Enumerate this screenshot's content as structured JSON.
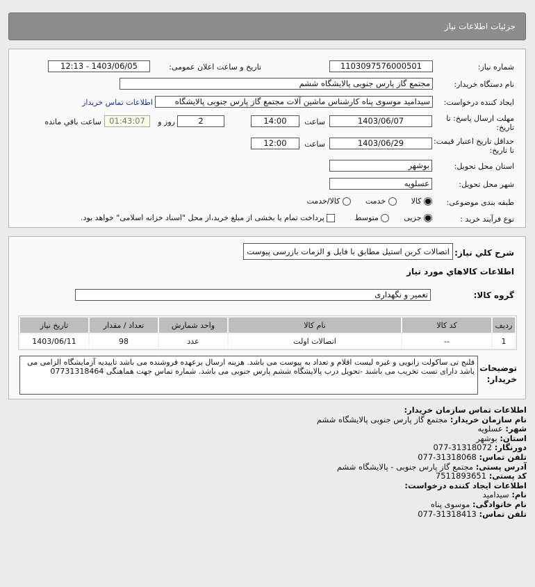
{
  "header": {
    "title": "جزئیات اطلاعات نیاز"
  },
  "form": {
    "need_number_label": "شماره نیاز:",
    "need_number": "1103097576000501",
    "announce_label": "تاریخ و ساعت اعلان عمومی:",
    "announce_value": "1403/06/05 - 12:13",
    "buyer_org_label": "نام دستگاه خریدار:",
    "buyer_org": "مجتمع گاز پارس جنوبی  پالایشگاه ششم",
    "creator_label": "ایجاد کننده درخواست:",
    "creator": "سیدامید موسوی پناه کارشناس ماشین آلات مجتمع گاز پارس جنوبی  پالایشگاه",
    "contact_link": "اطلاعات تماس خریدار",
    "deadline_label": "مهلت ارسال پاسخ: تا تاریخ:",
    "deadline_date": "1403/06/07",
    "time_label": "ساعت",
    "deadline_time": "14:00",
    "days": "2",
    "days_label": "روز و",
    "remaining": "01:43:07",
    "remaining_label": "ساعت باقي مانده",
    "validity_label": "حداقل تاریخ اعتبار قیمت: تا تاریخ:",
    "validity_date": "1403/06/29",
    "validity_time": "12:00",
    "province_label": "استان محل تحویل:",
    "province": "بوشهر",
    "city_label": "شهر محل تحویل:",
    "city": "عسلویه",
    "category_label": "طبقه بندی موضوعی:",
    "category_options": [
      "کالا",
      "خدمت",
      "کالا/خدمت"
    ],
    "category_selected": "کالا",
    "process_label": "نوع فرآیند خرید :",
    "process_options": [
      "جزیی",
      "متوسط"
    ],
    "process_selected": "جزیی",
    "payment_note": "پرداخت تمام یا بخشی از مبلغ خرید،از محل \"اسناد خزانه اسلامی\" خواهد بود."
  },
  "details": {
    "summary_label": "شرح کلي نياز:",
    "summary": "اتصالات کربن استیل مطابق با فایل و الزمات بازرسی پیوست",
    "goods_heading": "اطلاعات کالاهاي مورد نياز",
    "group_label": "گروه کالا:",
    "group": "تعمیر و نگهداری",
    "table": {
      "headers": [
        "ردیف",
        "کد کالا",
        "نام کالا",
        "واحد شمارش",
        "تعداد / مقدار",
        "تاریخ نیاز"
      ],
      "rows": [
        [
          "1",
          "--",
          "اتصالات اولت",
          "عدد",
          "98",
          "1403/06/11"
        ]
      ]
    },
    "notes_label": "توضیحات خریدار:",
    "notes": "فلنج تی ساکولت زانویی و غیره لیست اقلام و تعداد به پیوست می باشد. هزینه ارسال برعهده فروشنده می باشد تاییدیه آزمایشگاه الزامی می باشد دارای تست تخریب می باشند -تحویل درب پالایشگاه ششم پارس جنوبی می باشد. شماره تماس جهت هماهنگی 07731318464"
  },
  "contact": {
    "heading": "اطلاعات تماس سازمان خریدار:",
    "org_label": "نام سازمان خریدار:",
    "org": "مجتمع گاز پارس جنوبی پالایشگاه ششم",
    "city_label": "شهر:",
    "city": "عسلویه",
    "province_label": "استان:",
    "province": "بوشهر",
    "fax_label": "دورنگار:",
    "fax": "31318072-077",
    "phone_label": "تلفن تماس:",
    "phone": "31318068-077",
    "address_label": "آدرس پستی:",
    "address": "مجتمع گاز پارس جنوبی - پالایشگاه ششم",
    "postal_label": "کد پستی:",
    "postal": "7511893651",
    "creator_heading": "اطلاعات ایجاد کننده درخواست:",
    "name_label": "نام:",
    "name": "سیدامید",
    "family_label": "نام خانوادگی:",
    "family": "موسوی پناه",
    "creator_phone_label": "تلفن تماس:",
    "creator_phone": "31318413-077"
  }
}
